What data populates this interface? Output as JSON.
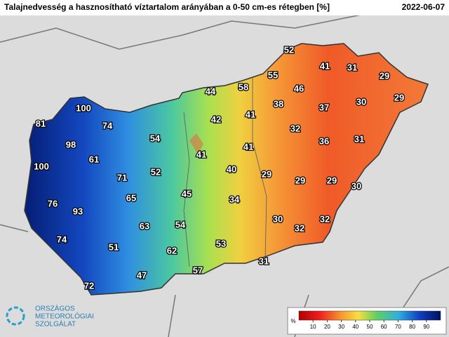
{
  "header": {
    "title": "Talajnedvesség a hasznosítható víztartalom arányában a 0-50 cm-es rétegben [%]",
    "date": "2022-06-07"
  },
  "stations": [
    52,
    41,
    31,
    29,
    55,
    58,
    46,
    44,
    100,
    38,
    37,
    30,
    29,
    81,
    74,
    42,
    41,
    32,
    54,
    36,
    31,
    98,
    41,
    41,
    61,
    100,
    40,
    52,
    71,
    29,
    29,
    29,
    30,
    45,
    34,
    65,
    76,
    93,
    30,
    32,
    32,
    63,
    54,
    74,
    53,
    51,
    62,
    31,
    57,
    47,
    72
  ],
  "legend": {
    "unit": "%",
    "ticks": [
      10,
      20,
      30,
      40,
      50,
      60,
      70,
      80,
      90
    ]
  },
  "logo": {
    "lines": [
      "ORSZÁGOS",
      "METEOROLÓGIAI",
      "SZOLGÁLAT"
    ]
  }
}
